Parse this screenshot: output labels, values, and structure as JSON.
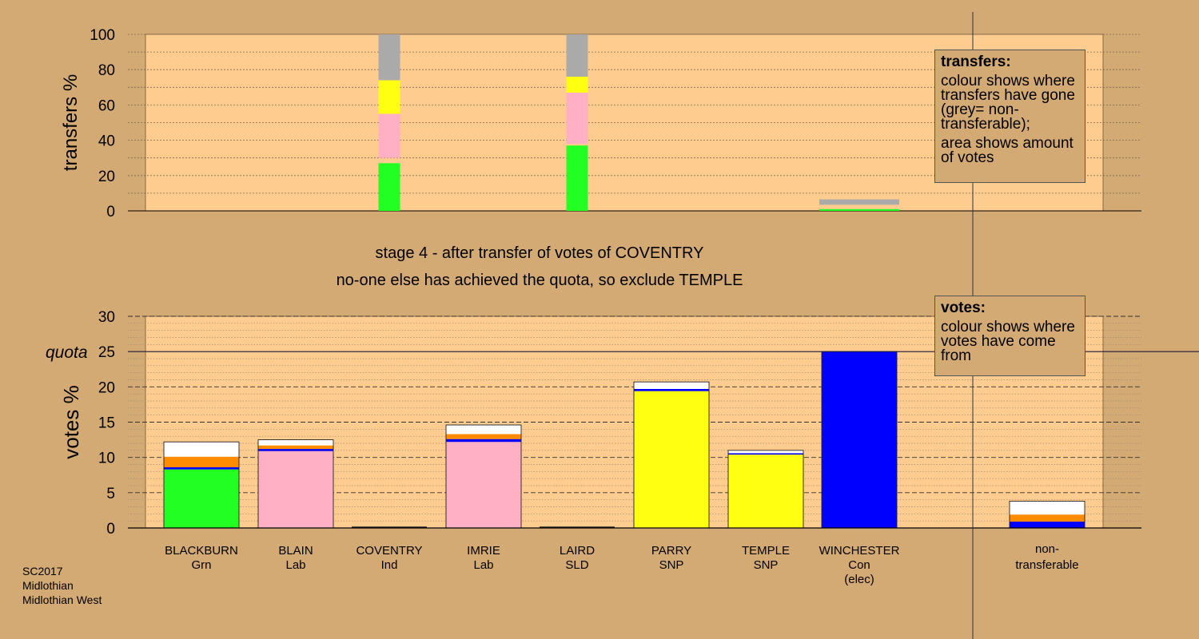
{
  "colors": {
    "background": "#d3a974",
    "plot": "#ffcc8f",
    "Grn": "#22ff22",
    "Lab": "#ffb0c4",
    "SNP": "#ffff11",
    "Con": "#0000ff",
    "LD": "#ff8c00",
    "nontransferable": "#aaaaaa",
    "remainder": "#ffffff"
  },
  "chart_data": [
    {
      "type": "bar",
      "stacked": true,
      "ylabel": "transfers %",
      "ylim": [
        0,
        100
      ],
      "yticks": [
        "0",
        "20",
        "40",
        "60",
        "80",
        "100"
      ],
      "grid": true,
      "bars": [
        {
          "candidate": "COVENTRY",
          "width": "full",
          "segments": [
            {
              "color_key": "Grn",
              "from": 0,
              "to": 27
            },
            {
              "color_key": "Lab",
              "from": 30,
              "to": 55
            },
            {
              "color_key": "SNP",
              "from": 55,
              "to": 74
            },
            {
              "color_key": "nontransferable",
              "from": 74,
              "to": 100
            }
          ]
        },
        {
          "candidate": "LAIRD",
          "width": "full",
          "segments": [
            {
              "color_key": "Grn",
              "from": 0,
              "to": 37
            },
            {
              "color_key": "Lab",
              "from": 38,
              "to": 67
            },
            {
              "color_key": "SNP",
              "from": 67,
              "to": 76
            },
            {
              "color_key": "nontransferable",
              "from": 76,
              "to": 100
            }
          ]
        },
        {
          "candidate": "WINCHESTER",
          "width": "wide",
          "segments": [
            {
              "color_key": "Grn",
              "from": 0,
              "to": 1
            },
            {
              "color_key": "nontransferable",
              "from": 3.5,
              "to": 6.5
            }
          ]
        }
      ]
    },
    {
      "type": "bar",
      "stacked": true,
      "ylabel": "votes %",
      "ylim": [
        0,
        30
      ],
      "yticks": [
        "0",
        "5",
        "10",
        "15",
        "20",
        "25",
        "30"
      ],
      "quota": 25,
      "quota_label": "quota",
      "grid": true,
      "categories": [
        {
          "name": "BLACKBURN",
          "party": "Grn",
          "note": ""
        },
        {
          "name": "BLAIN",
          "party": "Lab",
          "note": ""
        },
        {
          "name": "COVENTRY",
          "party": "Ind",
          "note": ""
        },
        {
          "name": "IMRIE",
          "party": "Lab",
          "note": ""
        },
        {
          "name": "LAIRD",
          "party": "SLD",
          "note": ""
        },
        {
          "name": "PARRY",
          "party": "SNP",
          "note": ""
        },
        {
          "name": "TEMPLE",
          "party": "SNP",
          "note": ""
        },
        {
          "name": "WINCHESTER",
          "party": "Con",
          "note": "(elec)"
        }
      ],
      "bars": [
        {
          "candidate": "BLACKBURN",
          "segments": [
            {
              "color_key": "Grn",
              "from": 0,
              "to": 8.3
            },
            {
              "color_key": "Con",
              "from": 8.3,
              "to": 8.6
            },
            {
              "color_key": "LD",
              "from": 8.6,
              "to": 10.1
            },
            {
              "color_key": "remainder",
              "from": 10.1,
              "to": 12.2
            }
          ]
        },
        {
          "candidate": "BLAIN",
          "segments": [
            {
              "color_key": "Lab",
              "from": 0,
              "to": 10.9
            },
            {
              "color_key": "Con",
              "from": 10.9,
              "to": 11.2
            },
            {
              "color_key": "LD",
              "from": 11.2,
              "to": 11.7
            },
            {
              "color_key": "remainder",
              "from": 11.7,
              "to": 12.5
            }
          ]
        },
        {
          "candidate": "COVENTRY",
          "segments": []
        },
        {
          "candidate": "IMRIE",
          "segments": [
            {
              "color_key": "Lab",
              "from": 0,
              "to": 12.2
            },
            {
              "color_key": "Con",
              "from": 12.2,
              "to": 12.6
            },
            {
              "color_key": "LD",
              "from": 12.6,
              "to": 13.3
            },
            {
              "color_key": "remainder",
              "from": 13.3,
              "to": 14.6
            }
          ]
        },
        {
          "candidate": "LAIRD",
          "segments": []
        },
        {
          "candidate": "PARRY",
          "segments": [
            {
              "color_key": "SNP",
              "from": 0,
              "to": 19.4
            },
            {
              "color_key": "Con",
              "from": 19.4,
              "to": 19.7
            },
            {
              "color_key": "remainder",
              "from": 19.7,
              "to": 20.7
            }
          ]
        },
        {
          "candidate": "TEMPLE",
          "segments": [
            {
              "color_key": "SNP",
              "from": 0,
              "to": 10.4
            },
            {
              "color_key": "Con",
              "from": 10.4,
              "to": 10.6
            },
            {
              "color_key": "remainder",
              "from": 10.6,
              "to": 11.0
            }
          ]
        },
        {
          "candidate": "WINCHESTER",
          "segments": [
            {
              "color_key": "Con",
              "from": 0,
              "to": 25.0
            }
          ]
        }
      ],
      "nontransferable": {
        "label_line1": "non-",
        "label_line2": "transferable",
        "segments": [
          {
            "color_key": "Con",
            "from": 0,
            "to": 0.9
          },
          {
            "color_key": "LD",
            "from": 0.9,
            "to": 1.9
          },
          {
            "color_key": "remainder",
            "from": 1.9,
            "to": 3.8
          }
        ]
      }
    }
  ],
  "stage_title": "stage 4 - after transfer of votes of COVENTRY",
  "stage_subtitle": "no-one else has achieved the quota, so exclude TEMPLE",
  "legend_transfers": {
    "title": "transfers:",
    "p1": "colour shows where transfers have gone (grey= non-transferable);",
    "p2": "area shows amount of votes"
  },
  "legend_votes": {
    "title": "votes:",
    "p1": "colour shows where votes have come from"
  },
  "footer": {
    "line1": "SC2017",
    "line2": "Midlothian",
    "line3": "Midlothian West"
  }
}
